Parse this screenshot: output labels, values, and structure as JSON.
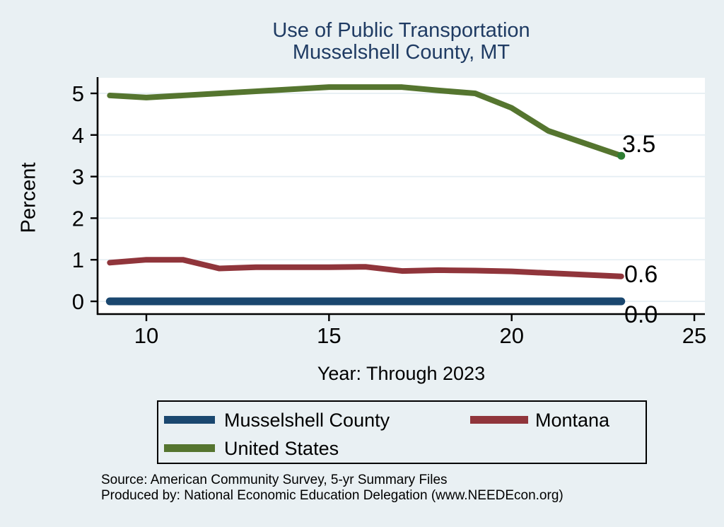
{
  "title": {
    "line1": "Use of Public Transportation",
    "line2": "Musselshell County, MT"
  },
  "axes": {
    "y_label": "Percent",
    "x_label": "Year: Through 2023"
  },
  "source": {
    "line1": "Source: American Community Survey, 5-yr Summary Files",
    "line2": "Produced by: National Economic Education Delegation (www.NEEDEcon.org)"
  },
  "colors": {
    "page_background": "#e9f0f3",
    "plot_background": "#ffffff",
    "gridline": "#e4eef3",
    "axis": "#000000",
    "title": "#1f3b63",
    "navy": "#1a476f",
    "maroon": "#90353b",
    "olive_green": "#55752f"
  },
  "chart_data": {
    "type": "line",
    "title": "Use of Public Transportation — Musselshell County, MT",
    "xlabel": "Year: Through 2023",
    "ylabel": "Percent",
    "grid": "horizontal gridlines on, white plot area, light-blue figure background",
    "legend_position": "bottom, boxed, two columns",
    "x": [
      9,
      10,
      11,
      12,
      13,
      14,
      15,
      16,
      17,
      18,
      19,
      20,
      21,
      22,
      23
    ],
    "x_ticks": [
      10,
      15,
      20,
      25
    ],
    "y_ticks": [
      0,
      1,
      2,
      3,
      4,
      5
    ],
    "xlim": [
      8.7,
      25.3
    ],
    "ylim": [
      -0.38,
      5.37
    ],
    "series": [
      {
        "name": "Musselshell County",
        "color": "#1a476f",
        "values": [
          0,
          0,
          0,
          0,
          0,
          0,
          0,
          0,
          0,
          0,
          0,
          0,
          0,
          0,
          0
        ],
        "end_label": "0.0"
      },
      {
        "name": "Montana",
        "color": "#90353b",
        "values": [
          0.93,
          1.0,
          1.0,
          0.79,
          0.82,
          0.82,
          0.82,
          0.83,
          0.73,
          0.75,
          0.74,
          0.72,
          0.68,
          0.64,
          0.6
        ],
        "end_label": "0.6"
      },
      {
        "name": "United States",
        "color": "#55752f",
        "values": [
          4.95,
          4.9,
          4.95,
          5.0,
          5.05,
          5.1,
          5.15,
          5.15,
          5.15,
          5.07,
          5.0,
          4.65,
          4.1,
          3.8,
          3.5
        ],
        "end_label": "3.5",
        "end_marker_color": "#2e7d32"
      }
    ]
  }
}
